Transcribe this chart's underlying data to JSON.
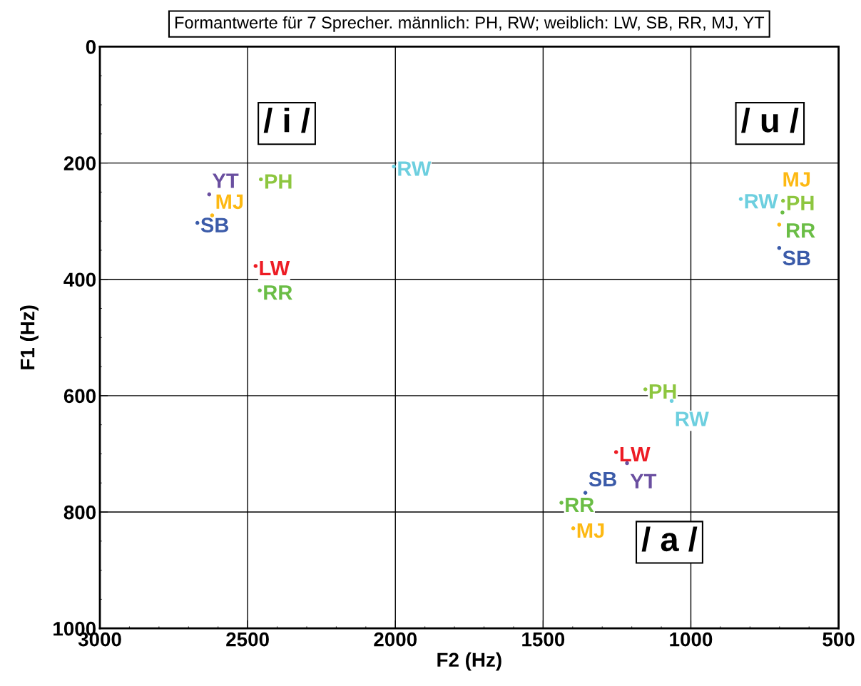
{
  "chart_data": {
    "type": "scatter",
    "title": "Formantwerte für 7 Sprecher. männlich: PH, RW; weiblich: LW, SB, RR, MJ, YT",
    "xlabel": "F2 (Hz)",
    "ylabel": "F1 (Hz)",
    "xlim": [
      3000,
      500
    ],
    "xticks": [
      3000,
      2500,
      2000,
      1500,
      1000,
      500
    ],
    "ylim": [
      1000,
      0
    ],
    "yticks": [
      0,
      200,
      400,
      600,
      800,
      1000
    ],
    "grid": true,
    "legend": false,
    "marker": "circle",
    "series": [
      {
        "name": "PH",
        "color": "#8dc63f",
        "x": [
          2455,
          688,
          1154
        ],
        "values": [
          228,
          265,
          589
        ]
      },
      {
        "name": "RW",
        "color": "#6dcfdf",
        "x": [
          2005,
          831,
          1065
        ],
        "values": [
          206,
          262,
          609
        ]
      },
      {
        "name": "LW",
        "color": "#ed1c24",
        "x": [
          2473,
          1253
        ],
        "values": [
          377,
          697
        ]
      },
      {
        "name": "RR",
        "color": "#6abd45",
        "x": [
          2459,
          690,
          1438
        ],
        "values": [
          419,
          285,
          784
        ]
      },
      {
        "name": "SB",
        "color": "#3b5ba9",
        "x": [
          2670,
          701,
          1357
        ],
        "values": [
          303,
          346,
          767
        ]
      },
      {
        "name": "MJ",
        "color": "#fdb913",
        "x": [
          2620,
          701,
          1398
        ],
        "values": [
          290,
          306,
          828
        ]
      },
      {
        "name": "YT",
        "color": "#6a4fa0",
        "x": [
          2630,
          1216
        ],
        "values": [
          254,
          716
        ]
      }
    ],
    "annotations": [
      "/ i /",
      "/ u /",
      "/ a /"
    ]
  }
}
